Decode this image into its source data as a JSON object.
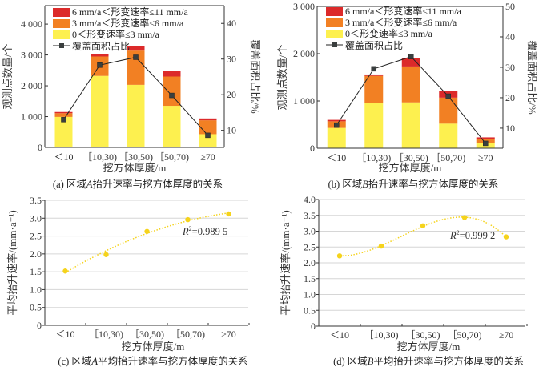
{
  "chart_data": [
    {
      "id": "a",
      "type": "bar",
      "stacked": true,
      "title": "(a) 区域A抬升速率与挖方体厚度的关系",
      "caption_prefix": "(a) 区域",
      "caption_region": "A",
      "caption_suffix": "抬升速率与挖方体厚度的关系",
      "xlabel": "挖方体厚度/m",
      "ylabel": "观测点数量/个",
      "y2label": "覆盖面积占比/%",
      "categories": [
        "<10",
        "[10,30)",
        "[30,50)",
        "[50,70)",
        "≥70"
      ],
      "category_labels": [
        "＜10",
        "［10,30)",
        "［30,50)",
        "［50,70)",
        "≥70"
      ],
      "ylim": [
        0,
        4600
      ],
      "yticks": [
        0,
        1000,
        2000,
        3000,
        4000
      ],
      "ytick_labels": [
        "0",
        "1 000",
        "2 000",
        "3 000",
        "4 000"
      ],
      "y2lim": [
        5.2,
        45
      ],
      "y2ticks": [
        10,
        20,
        30,
        40
      ],
      "y2tick_labels": [
        "10",
        "20",
        "30",
        "40"
      ],
      "legend_position": "top-left",
      "series": [
        {
          "name": "0＜形变速率≤3 mm/a",
          "color": "#fdf04f",
          "values": [
            990,
            2320,
            2030,
            1350,
            430
          ]
        },
        {
          "name": "3 mm/a＜形变速率≤6 mm/a",
          "color": "#f28023",
          "values": [
            120,
            630,
            1110,
            950,
            450
          ]
        },
        {
          "name": "6 mm/a＜形变速率≤11 mm/a",
          "color": "#dc2a2a",
          "values": [
            40,
            90,
            140,
            180,
            60
          ]
        }
      ],
      "line_series": {
        "name": "覆盖面积占比",
        "color": "#222222",
        "axis": "right",
        "values": [
          13.0,
          28.3,
          30.5,
          19.8,
          8.6
        ]
      }
    },
    {
      "id": "b",
      "type": "bar",
      "stacked": true,
      "title": "(b) 区域B抬升速率与挖方体厚度的关系",
      "caption_prefix": "(b) 区域",
      "caption_region": "B",
      "caption_suffix": "抬升速率与挖方体厚度的关系",
      "xlabel": "挖方体厚度/m",
      "ylabel": "观测点数量/个",
      "y2label": "覆盖面积占比/%",
      "categories": [
        "<10",
        "[10,30)",
        "[30,50)",
        "[50,70)",
        "≥70"
      ],
      "category_labels": [
        "＜10",
        "［10,30)",
        "［30,50)",
        "［50,70)",
        "≥70"
      ],
      "ylim": [
        0,
        3000
      ],
      "yticks": [
        0,
        1000,
        2000,
        3000
      ],
      "ytick_labels": [
        "0",
        "1 000",
        "2 000",
        "3 000"
      ],
      "y2lim": [
        3.4,
        50
      ],
      "y2ticks": [
        10,
        20,
        30,
        40,
        50
      ],
      "y2tick_labels": [
        "10",
        "20",
        "30",
        "40",
        "50"
      ],
      "legend_position": "top-left",
      "series": [
        {
          "name": "0＜形变速率≤3 mm/a",
          "color": "#fdf04f",
          "values": [
            430,
            960,
            970,
            520,
            110
          ]
        },
        {
          "name": "3 mm/a＜形变速率≤6 mm/a",
          "color": "#f28023",
          "values": [
            140,
            570,
            760,
            550,
            90
          ]
        },
        {
          "name": "6 mm/a＜形变速率≤11 mm/a",
          "color": "#dc2a2a",
          "values": [
            30,
            30,
            170,
            140,
            30
          ]
        }
      ],
      "line_series": {
        "name": "覆盖面积占比",
        "color": "#222222",
        "axis": "right",
        "values": [
          11.0,
          29.5,
          33.5,
          20.5,
          5.0
        ]
      }
    },
    {
      "id": "c",
      "type": "scatter",
      "trendline": "polynomial",
      "title": "(c) 区域A平均抬升速率与挖方体厚度的关系",
      "caption_prefix": "(c) 区域",
      "caption_region": "A",
      "caption_suffix": "平均抬升速率与挖方体厚度的关系",
      "xlabel": "挖方体厚度/m",
      "ylabel": "平均抬升速率/(mm·a⁻¹)",
      "categories": [
        "<10",
        "[10,30)",
        "[30,50)",
        "[50,70)",
        "≥70"
      ],
      "category_labels": [
        "＜10",
        "［10,30)",
        "［30,50)",
        "［50,70)",
        "≥70"
      ],
      "ylim": [
        0,
        3.5
      ],
      "yticks": [
        0,
        0.5,
        1.0,
        1.5,
        2.0,
        2.5,
        3.0,
        3.5
      ],
      "ytick_labels": [
        "0",
        "0.5",
        "1.0",
        "1.5",
        "2.0",
        "2.5",
        "3.0",
        "3.5"
      ],
      "grid": true,
      "color": "#f5d31c",
      "values": [
        1.52,
        1.98,
        2.63,
        2.96,
        3.12
      ],
      "r2_label": "R",
      "r2_value": "=0.989 5"
    },
    {
      "id": "d",
      "type": "scatter",
      "trendline": "polynomial",
      "title": "(d) 区域B平均抬升速率与挖方体厚度的关系",
      "caption_prefix": "(d) 区域",
      "caption_region": "B",
      "caption_suffix": "平均抬升速率与挖方体厚度的关系",
      "xlabel": "挖方体厚度/m",
      "ylabel": "平均抬升速率/(mm·a⁻¹)",
      "categories": [
        "<10",
        "[10,30)",
        "[30,50)",
        "[50,70)",
        "≥70"
      ],
      "category_labels": [
        "＜10",
        "［10,30)",
        "［30,50)",
        "［50,70)",
        "≥70"
      ],
      "ylim": [
        0,
        4.0
      ],
      "yticks": [
        0,
        0.5,
        1.0,
        1.5,
        2.0,
        2.5,
        3.0,
        3.5,
        4.0
      ],
      "ytick_labels": [
        "0",
        "0.5",
        "1.0",
        "1.5",
        "2.0",
        "2.5",
        "3.0",
        "3.5",
        "4.0"
      ],
      "grid": true,
      "color": "#f5d31c",
      "values": [
        2.22,
        2.53,
        3.17,
        3.43,
        2.82
      ],
      "r2_label": "R",
      "r2_value": "=0.999 2"
    }
  ]
}
